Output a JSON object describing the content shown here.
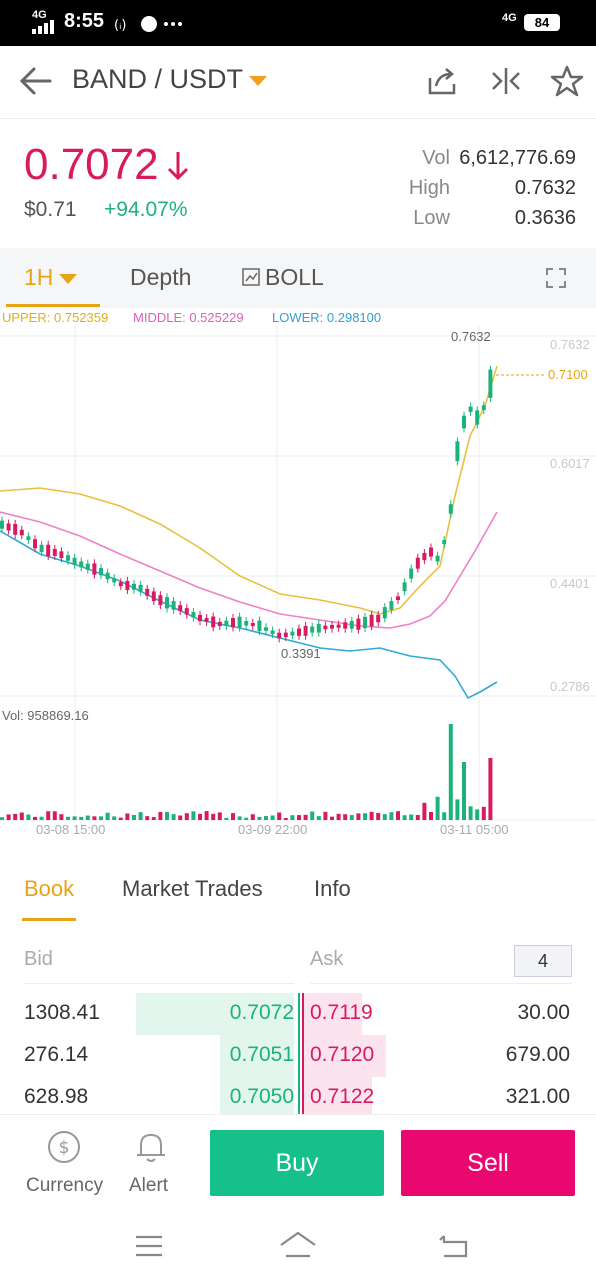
{
  "status": {
    "time": "8:55",
    "network": "4G",
    "battery": "84"
  },
  "header": {
    "pair": "BAND / USDT",
    "back_icon": "arrow-left-icon",
    "share_icon": "share-icon",
    "compare_icon": "compare-icon",
    "star_icon": "star-icon"
  },
  "ticker": {
    "price": "0.7072",
    "usd": "$0.71",
    "change": "+94.07%",
    "vol_label": "Vol",
    "vol": "6,612,776.69",
    "high_label": "High",
    "high": "0.7632",
    "low_label": "Low",
    "low": "0.3636"
  },
  "chart_tabs": {
    "interval": "1H",
    "depth": "Depth",
    "boll": "BOLL"
  },
  "indicator": {
    "upper": "UPPER: 0.752359",
    "middle": "MIDDLE: 0.525229",
    "lower": "LOWER: 0.298100"
  },
  "chart_data": {
    "type": "candlestick",
    "y_ticks": [
      "0.7632",
      "0.6017",
      "0.4401",
      "0.2786"
    ],
    "current_price": "0.7100",
    "high_marker": "0.7632",
    "low_marker": "0.3391",
    "volume_label": "Vol: 958869.16",
    "x_ticks": [
      "03-08 15:00",
      "03-09 22:00",
      "03-11 05:00"
    ],
    "colors": {
      "up": "#1bb37a",
      "down": "#d81b60",
      "upper": "#e8c040",
      "middle": "#f080c8",
      "lower": "#30a8d8"
    }
  },
  "book_tabs": {
    "book": "Book",
    "trades": "Market Trades",
    "info": "Info"
  },
  "book": {
    "bid_label": "Bid",
    "ask_label": "Ask",
    "depth": "4",
    "rows": [
      {
        "bid_qty": "1308.41",
        "bid_price": "0.7072",
        "ask_price": "0.7119",
        "ask_qty": "30.00"
      },
      {
        "bid_qty": "276.14",
        "bid_price": "0.7051",
        "ask_price": "0.7120",
        "ask_qty": "679.00"
      },
      {
        "bid_qty": "628.98",
        "bid_price": "0.7050",
        "ask_price": "0.7122",
        "ask_qty": "321.00"
      }
    ]
  },
  "actions": {
    "currency": "Currency",
    "alert": "Alert",
    "buy": "Buy",
    "sell": "Sell"
  }
}
